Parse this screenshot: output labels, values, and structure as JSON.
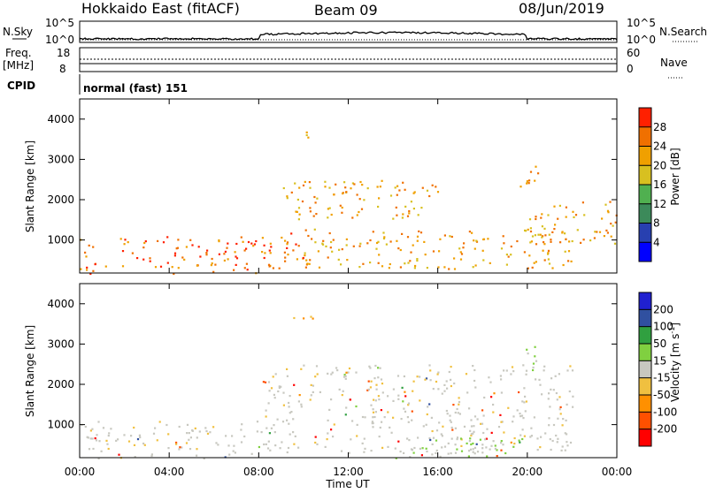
{
  "header": {
    "station": "Hokkaido East (fitACF)",
    "beam": "Beam 09",
    "date": "08/Jun/2019"
  },
  "left_labels": {
    "nsky": "N.Sky",
    "freq": "Freq.",
    "freq_unit": "[MHz]",
    "cpid": "CPID"
  },
  "right_labels": {
    "nsearch": "N.Search",
    "nave": "Nave"
  },
  "cpid_text": "normal (fast) 151",
  "noise_panel": {
    "left_ticks": [
      "10^5",
      "10^0"
    ],
    "right_ticks": [
      "10^5",
      "10^0"
    ]
  },
  "freq_panel": {
    "left_ticks": [
      "18",
      "8"
    ],
    "right_ticks": [
      "60",
      "0"
    ]
  },
  "x_axis": {
    "label": "Time UT",
    "ticks": [
      "00:00",
      "04:00",
      "08:00",
      "12:00",
      "16:00",
      "20:00",
      "00:00"
    ]
  },
  "y_axis": {
    "label": "Slant Range [km]",
    "ticks": [
      "1000",
      "2000",
      "3000",
      "4000"
    ]
  },
  "power_scale": {
    "label": "Power [dB]",
    "ticks": [
      "4",
      "8",
      "12",
      "16",
      "20",
      "24",
      "28"
    ],
    "colors": [
      "#0000ff",
      "#2840b0",
      "#3c8a5a",
      "#50b050",
      "#d8c020",
      "#f0a000",
      "#f07000",
      "#ff2000"
    ]
  },
  "velocity_scale": {
    "label": "Velocity [m s",
    "label_sup": "-1",
    "label_end": "]",
    "ticks": [
      "-200",
      "-100",
      "-50",
      "-15",
      "15",
      "50",
      "100",
      "200"
    ],
    "colors": [
      "#ff0000",
      "#ff5000",
      "#ff9000",
      "#f0c040",
      "#c8c8c0",
      "#80d040",
      "#30a040",
      "#3050a0",
      "#2020d0"
    ]
  },
  "chart_data": [
    {
      "type": "heatmap",
      "title": "Power",
      "xlabel": "Time UT",
      "ylabel": "Slant Range [km]",
      "x_range": [
        "00:00",
        "24:00"
      ],
      "ylim": [
        180,
        4500
      ],
      "colorbar_label": "Power [dB]",
      "colorbar_range": [
        0,
        32
      ],
      "regions": [
        {
          "t_start": 0.0,
          "t_end": 8.5,
          "r_start": 180,
          "r_end": 1100,
          "value_db": 26
        },
        {
          "t_start": 8.0,
          "t_end": 10.0,
          "r_start": 300,
          "r_end": 1200,
          "value_db": 24
        },
        {
          "t_start": 10.0,
          "t_end": 22.0,
          "r_start": 300,
          "r_end": 1300,
          "value_db": 22
        },
        {
          "t_start": 9.0,
          "t_end": 16.0,
          "r_start": 1500,
          "r_end": 2500,
          "value_db": 20
        },
        {
          "t_start": 9.5,
          "t_end": 10.5,
          "r_start": 3500,
          "r_end": 3800,
          "value_db": 18
        },
        {
          "t_start": 19.5,
          "t_end": 20.5,
          "r_start": 2300,
          "r_end": 3000,
          "value_db": 22
        },
        {
          "t_start": 20.0,
          "t_end": 24.0,
          "r_start": 900,
          "r_end": 2000,
          "value_db": 20
        }
      ]
    },
    {
      "type": "heatmap",
      "title": "Velocity",
      "xlabel": "Time UT",
      "ylabel": "Slant Range [km]",
      "x_range": [
        "00:00",
        "24:00"
      ],
      "ylim": [
        180,
        4500
      ],
      "colorbar_label": "Velocity [m s-1]",
      "colorbar_range": [
        -250,
        250
      ],
      "regions": [
        {
          "t_start": 0.0,
          "t_end": 8.5,
          "r_start": 180,
          "r_end": 1100,
          "value_ms": 0
        },
        {
          "t_start": 8.0,
          "t_end": 22.0,
          "r_start": 300,
          "r_end": 2500,
          "value_ms": 0
        },
        {
          "t_start": 14.0,
          "t_end": 20.0,
          "r_start": 180,
          "r_end": 700,
          "value_ms": 40
        },
        {
          "t_start": 9.5,
          "t_end": 10.5,
          "r_start": 3500,
          "r_end": 3800,
          "value_ms": -60
        },
        {
          "t_start": 19.5,
          "t_end": 20.5,
          "r_start": 2300,
          "r_end": 3000,
          "value_ms": 30
        }
      ]
    }
  ]
}
